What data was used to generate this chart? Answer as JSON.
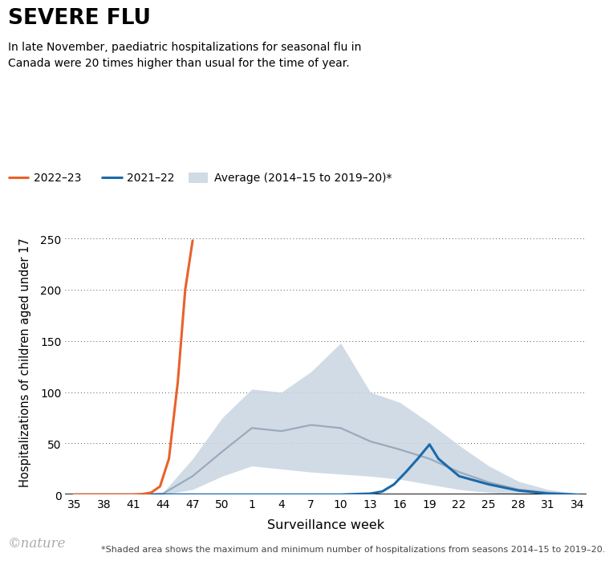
{
  "title": "SEVERE FLU",
  "subtitle": "In late November, paediatric hospitalizations for seasonal flu in\nCanada were 20 times higher than usual for the time of year.",
  "footnote": "*Shaded area shows the maximum and minimum number of hospitalizations from seasons 2014–15 to 2019–20.",
  "xlabel": "Surveillance week",
  "ylabel": "Hospitalizations of children aged under 17",
  "ylim": [
    0,
    260
  ],
  "yticks": [
    0,
    50,
    100,
    150,
    200,
    250
  ],
  "xtick_labels": [
    "35",
    "38",
    "41",
    "44",
    "47",
    "50",
    "1",
    "4",
    "7",
    "10",
    "13",
    "16",
    "19",
    "22",
    "25",
    "28",
    "31",
    "34"
  ],
  "legend_labels": [
    "2022–23",
    "2021–22",
    "Average (2014–15 to 2019–20)*"
  ],
  "color_2022": "#E8622A",
  "color_2021": "#1B6AAA",
  "color_avg": "#9AAABB",
  "color_shade": "#C8D5E2",
  "bg_color": "#FFFFFF",
  "nature_color": "#AAAAAA",
  "x_avg": [
    0,
    1,
    2,
    3,
    4,
    5,
    6,
    7,
    8,
    9,
    10,
    11,
    12,
    13,
    14,
    15,
    16,
    17
  ],
  "y_avg_mean": [
    0,
    0,
    0,
    1,
    18,
    42,
    65,
    62,
    68,
    65,
    52,
    44,
    35,
    22,
    12,
    5,
    2,
    0
  ],
  "y_avg_min": [
    0,
    0,
    0,
    0,
    5,
    18,
    28,
    25,
    22,
    20,
    18,
    15,
    10,
    5,
    2,
    0,
    0,
    0
  ],
  "y_avg_max": [
    0,
    0,
    0,
    2,
    35,
    75,
    103,
    100,
    120,
    148,
    100,
    90,
    70,
    48,
    28,
    13,
    5,
    1
  ],
  "x_2022": [
    0,
    1,
    2,
    2.3,
    2.6,
    2.9,
    3.2,
    3.5,
    3.75,
    4.0
  ],
  "y_2022": [
    0,
    0,
    0,
    0.5,
    2,
    8,
    35,
    110,
    200,
    248
  ],
  "x_2021": [
    0,
    1,
    2,
    3,
    4,
    5,
    6,
    7,
    8,
    9,
    10,
    10.4,
    10.8,
    11.2,
    11.6,
    12,
    12.3,
    13,
    14,
    15,
    16,
    17
  ],
  "y_2021": [
    0,
    0,
    0,
    0,
    0,
    0,
    0,
    0,
    0,
    0,
    1,
    3,
    10,
    22,
    35,
    49,
    35,
    18,
    10,
    4,
    1,
    0
  ]
}
